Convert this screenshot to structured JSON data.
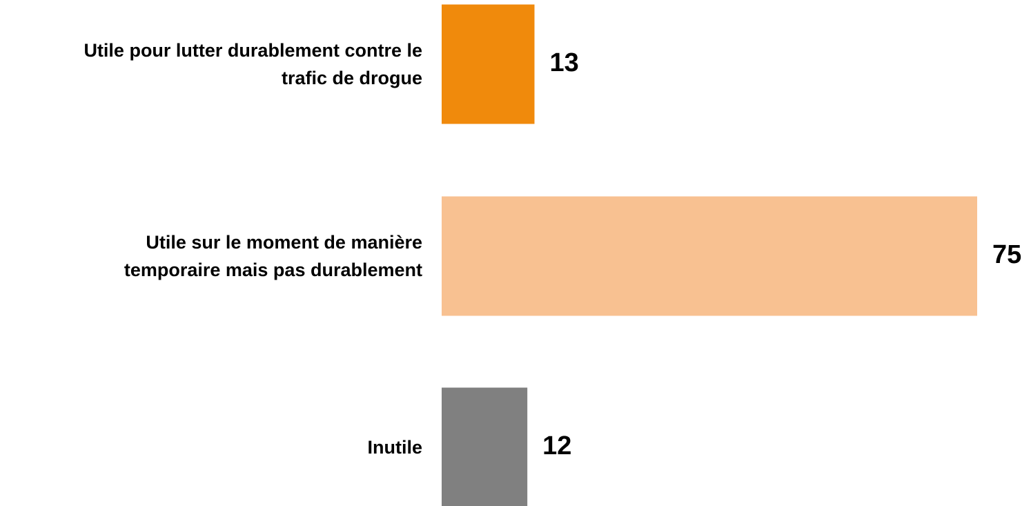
{
  "chart_data": {
    "type": "bar",
    "orientation": "horizontal",
    "categories": [
      "Utile pour lutter durablement contre le trafic de drogue",
      "Utile sur le moment de manière temporaire mais pas durablement",
      "Inutile"
    ],
    "values": [
      13,
      75,
      12
    ],
    "colors": [
      "#f08a0c",
      "#f8c191",
      "#808080"
    ]
  }
}
